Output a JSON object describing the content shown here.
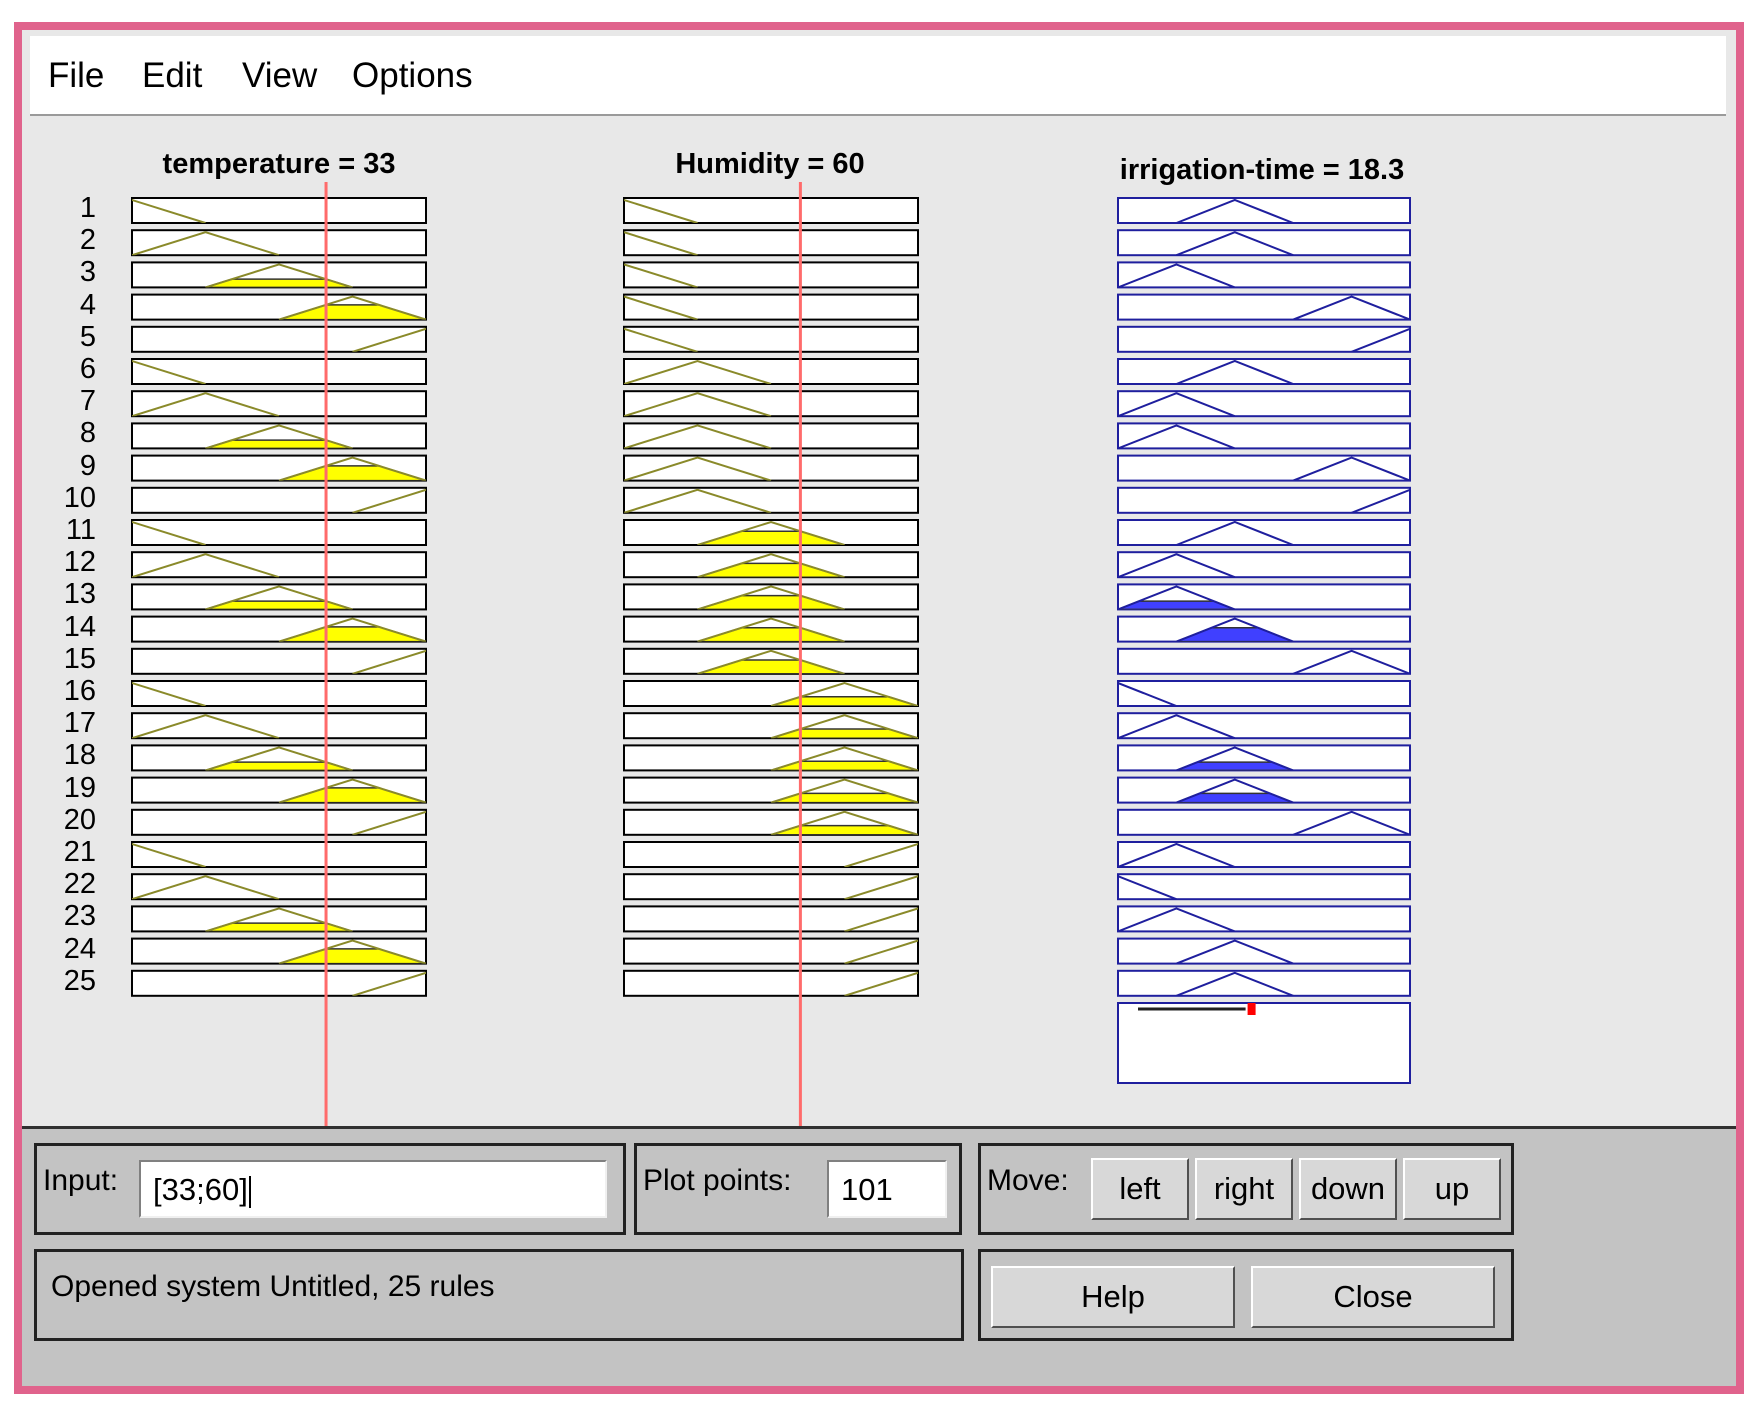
{
  "menu": [
    "File",
    "Edit",
    "View",
    "Options"
  ],
  "columns": {
    "temperature": {
      "title": "temperature = 33",
      "value": 33
    },
    "humidity": {
      "title": "Humidity = 60",
      "value": 60
    },
    "output": {
      "title": "irrigation-time = 18.3",
      "value": 18.3
    }
  },
  "rule_numbers": [
    "1",
    "2",
    "3",
    "4",
    "5",
    "6",
    "7",
    "8",
    "9",
    "10",
    "11",
    "12",
    "13",
    "14",
    "15",
    "16",
    "17",
    "18",
    "19",
    "20",
    "21",
    "22",
    "23",
    "24",
    "25"
  ],
  "rules": {
    "temperature_mf": [
      1,
      2,
      3,
      4,
      5,
      1,
      2,
      3,
      4,
      5,
      1,
      2,
      3,
      4,
      5,
      1,
      2,
      3,
      4,
      5,
      1,
      2,
      3,
      4,
      5
    ],
    "humidity_mf": [
      1,
      1,
      1,
      1,
      1,
      2,
      2,
      2,
      2,
      2,
      3,
      3,
      3,
      3,
      3,
      4,
      4,
      4,
      4,
      4,
      5,
      5,
      5,
      5,
      5
    ],
    "output_mf": [
      3,
      3,
      2,
      5,
      6,
      3,
      2,
      2,
      5,
      6,
      3,
      2,
      2,
      3,
      5,
      1,
      2,
      3,
      3,
      5,
      2,
      1,
      2,
      3,
      3
    ]
  },
  "colors": {
    "input_fill": "#ffff00",
    "input_line": "#8a8a2a",
    "output_line": "#1f1f9e",
    "output_fill": "#4040ff",
    "indicator": "#ff6b6b",
    "frame_border": "#e0638c"
  },
  "panel": {
    "input_label": "Input:",
    "input_value": "[33;60]",
    "plot_points_label": "Plot points:",
    "plot_points_value": "101",
    "move_label": "Move:",
    "move_buttons": [
      "left",
      "right",
      "down",
      "up"
    ],
    "status": "Opened system Untitled, 25 rules",
    "help_label": "Help",
    "close_label": "Close"
  }
}
